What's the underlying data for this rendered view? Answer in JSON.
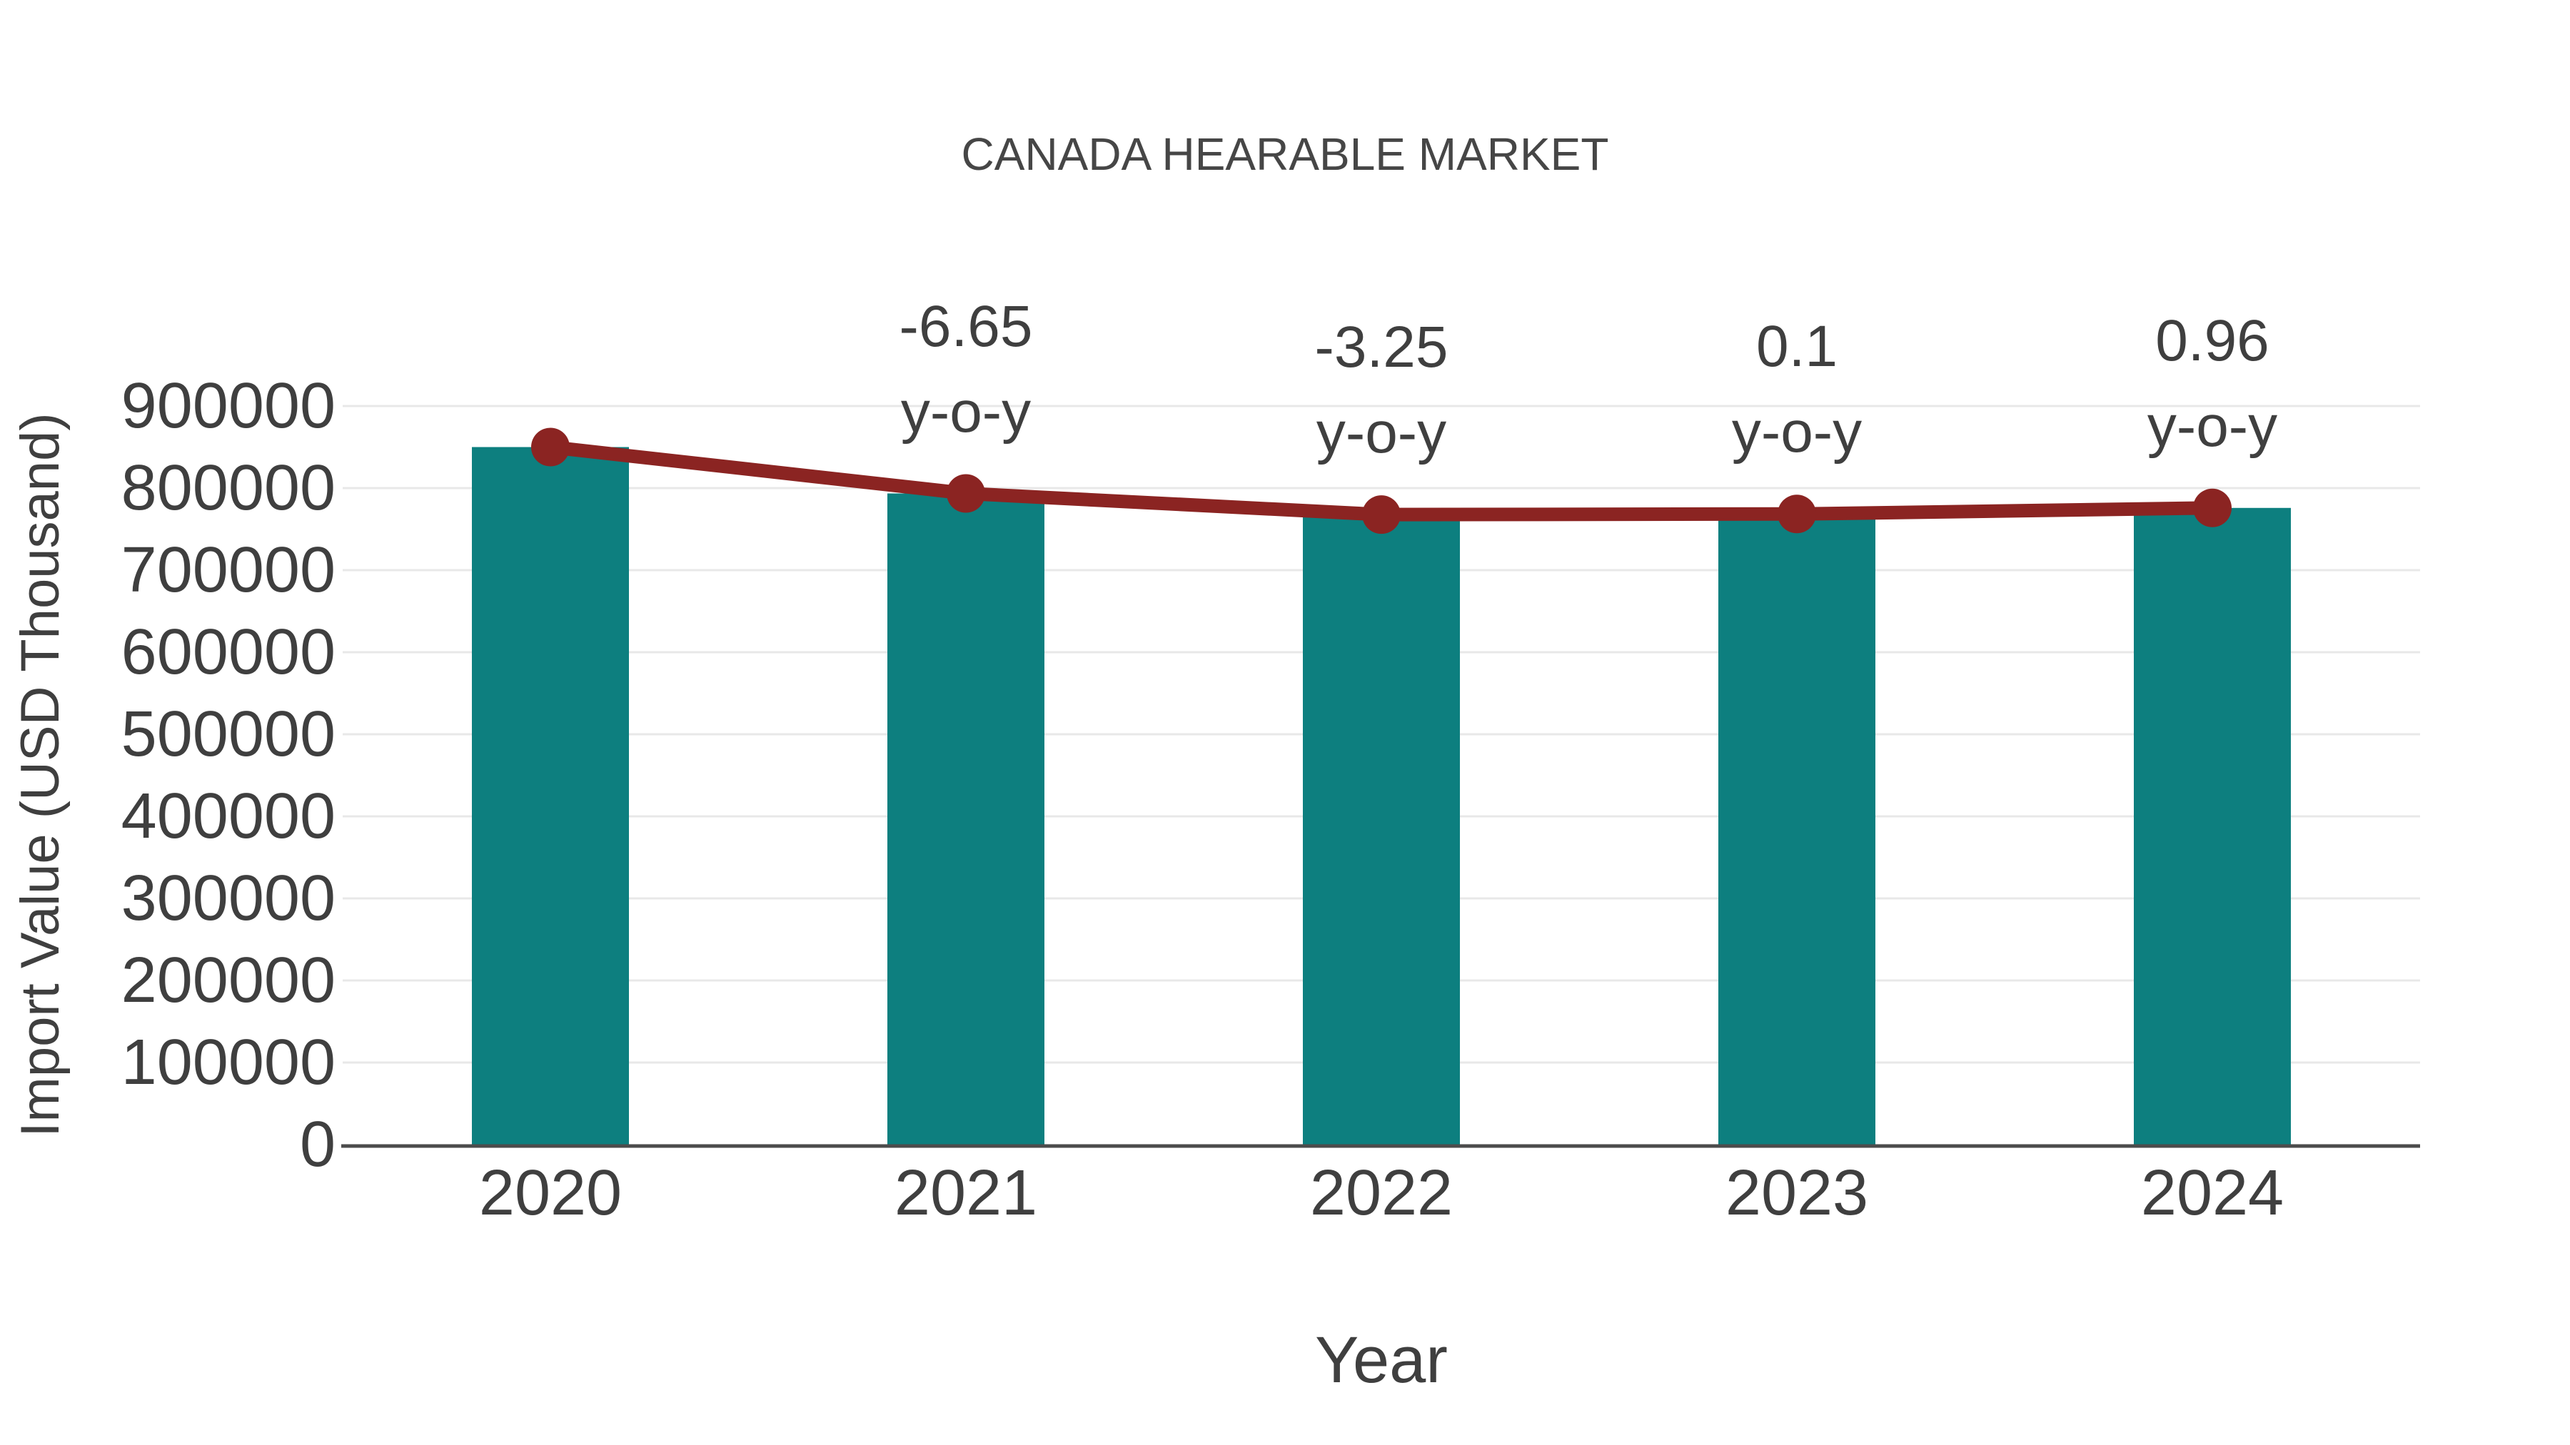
{
  "figure": {
    "title": "CANADA HEARABLE MARKET"
  },
  "colors": {
    "bar": "#0d7f7f",
    "line": "#8b2422",
    "marker": "#8b2422",
    "grid": "#e8e8e8",
    "axis_line": "#4c4c4c",
    "text": "#3f3f3f",
    "title_text": "#464646",
    "background": "#ffffff"
  },
  "chart_data": {
    "type": "bar",
    "title": "CANADA HEARABLE MARKET",
    "xlabel": "Year",
    "ylabel": "Import Value (USD Thousand)",
    "categories": [
      "2020",
      "2021",
      "2022",
      "2023",
      "2024"
    ],
    "series": [
      {
        "name": "Import Value (USD Thousand) - bars",
        "type": "bar",
        "values": [
          850000,
          793475,
          767687,
          768455,
          775832
        ]
      },
      {
        "name": "Import Value (USD Thousand) - line overlay",
        "type": "line",
        "values": [
          850000,
          793475,
          767687,
          768455,
          775832
        ]
      }
    ],
    "yoy_percent": [
      null,
      -6.65,
      -3.25,
      0.1,
      0.96
    ],
    "annotations": [
      {
        "category": "2021",
        "value_label": "-6.65",
        "sub_label": "y-o-y"
      },
      {
        "category": "2022",
        "value_label": "-3.25",
        "sub_label": "y-o-y"
      },
      {
        "category": "2023",
        "value_label": "0.1",
        "sub_label": "y-o-y"
      },
      {
        "category": "2024",
        "value_label": "0.96",
        "sub_label": "y-o-y"
      }
    ],
    "yticks": [
      0,
      100000,
      200000,
      300000,
      400000,
      500000,
      600000,
      700000,
      800000,
      900000
    ],
    "ylim": [
      0,
      900000
    ],
    "grid": "horizontal",
    "legend": "none"
  }
}
